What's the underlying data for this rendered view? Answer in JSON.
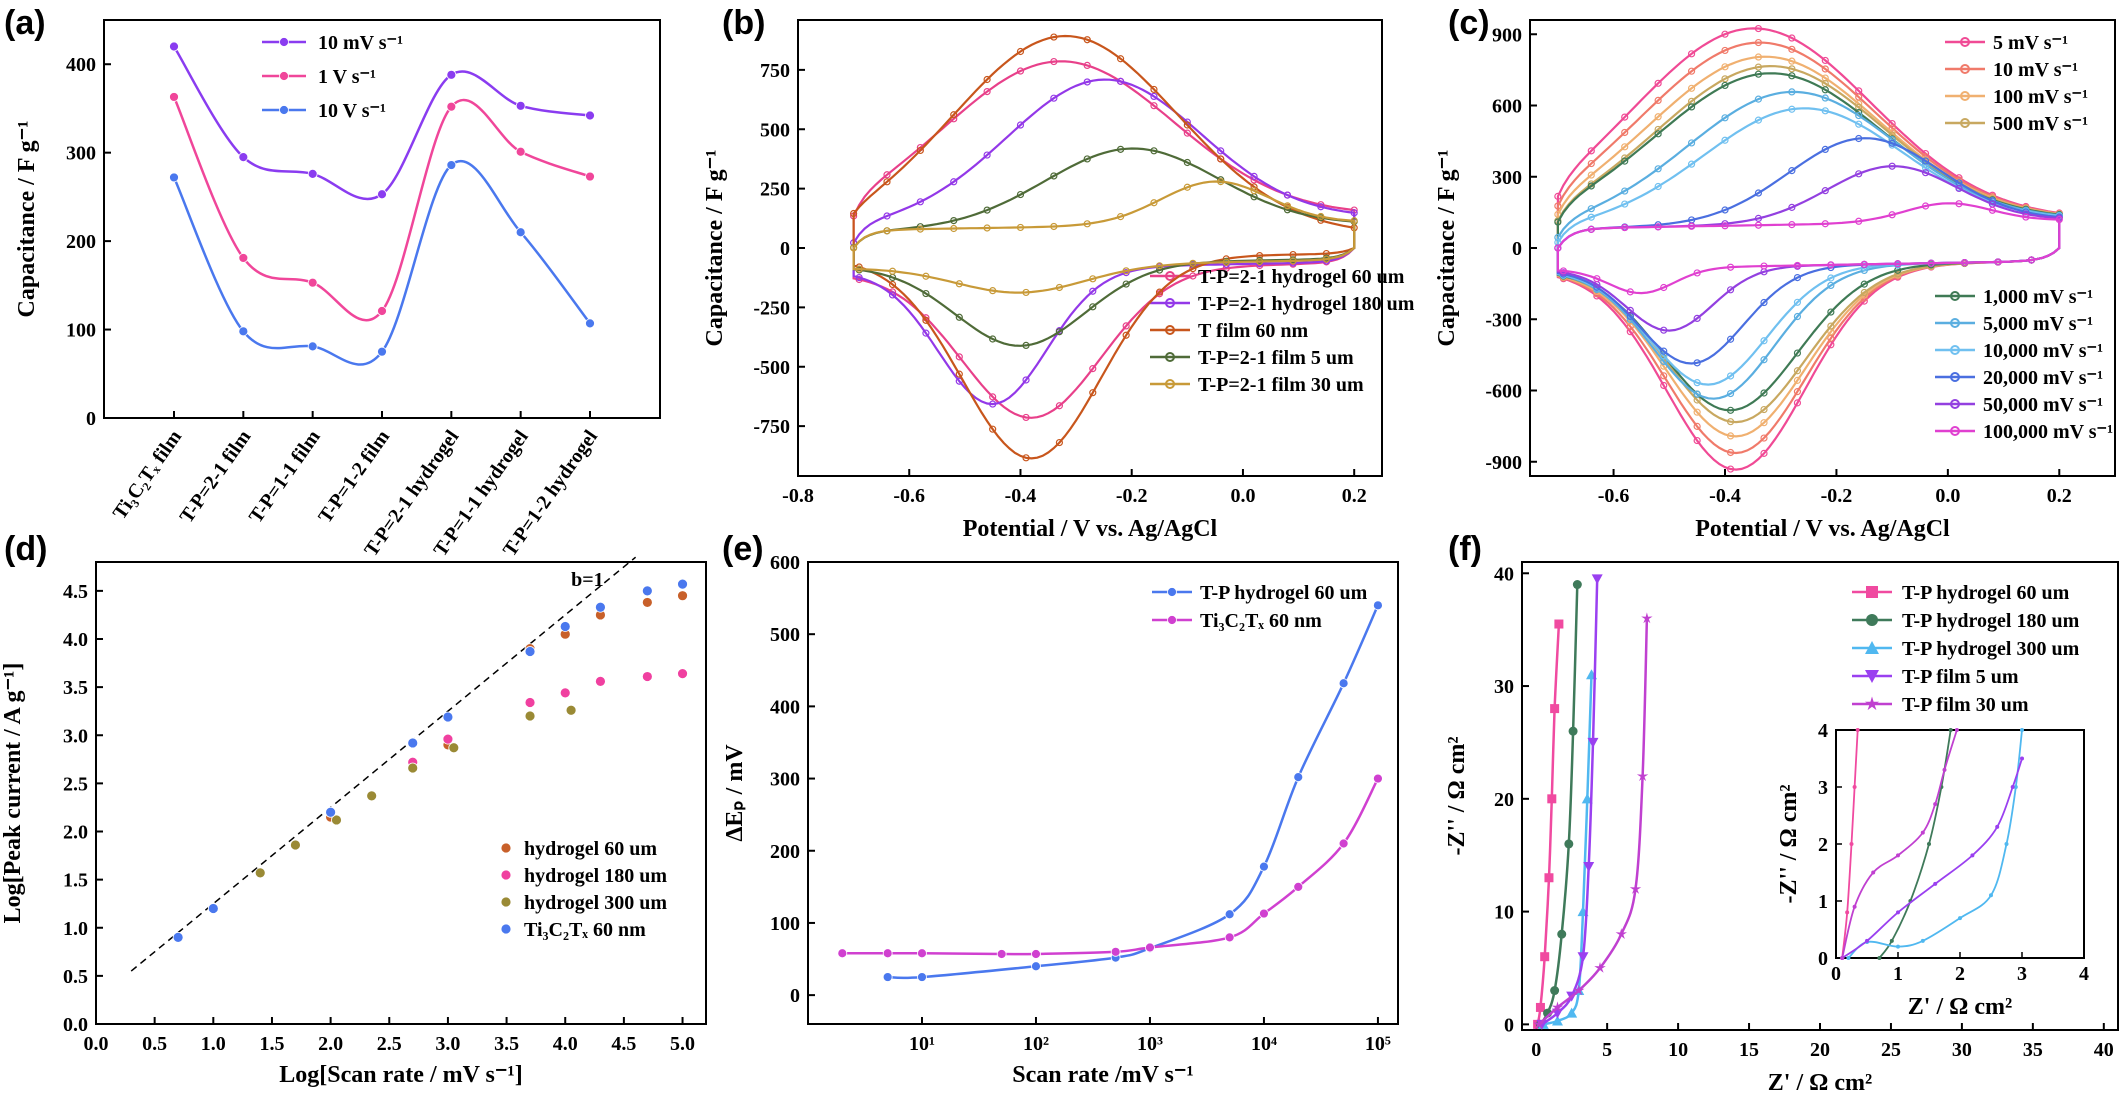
{
  "panel_labels": [
    "(a)",
    "(b)",
    "(c)",
    "(d)",
    "(e)",
    "(f)"
  ],
  "chart_data": [
    {
      "panel": "(a)",
      "type": "line",
      "xlabel": "",
      "ylabel": "Capacitance / F g⁻¹",
      "ylim": [
        0,
        450
      ],
      "yticks": [
        0,
        100,
        200,
        300,
        400
      ],
      "categories": [
        "Ti₃C₂Tₓ film",
        "T-P=2-1 film",
        "T-P=1-1 film",
        "T-P=1-2 film",
        "T-P=2-1 hydrogel",
        "T-P=1-1 hydrogel",
        "T-P=1-2 hydrogel"
      ],
      "series": [
        {
          "name": "10 mV s⁻¹",
          "color": "#8a3cf0",
          "values": [
            420,
            295,
            276,
            253,
            388,
            353,
            342
          ]
        },
        {
          "name": "1 V s⁻¹",
          "color": "#f0469a",
          "values": [
            363,
            181,
            153,
            121,
            352,
            301,
            273
          ]
        },
        {
          "name": "10 V s⁻¹",
          "color": "#4a78ee",
          "values": [
            272,
            98,
            81,
            75,
            286,
            210,
            107
          ]
        }
      ],
      "legend": "top-center"
    },
    {
      "panel": "(b)",
      "type": "line",
      "xlabel": "Potential / V vs. Ag/AgCl",
      "ylabel": "Capacitance / F g⁻¹",
      "xlim": [
        -0.8,
        0.25
      ],
      "ylim": [
        -960,
        960
      ],
      "xticks": [
        -0.8,
        -0.6,
        -0.4,
        -0.2,
        0.0,
        0.2
      ],
      "yticks": [
        -750,
        -500,
        -250,
        0,
        250,
        500,
        750
      ],
      "cv_window": [
        -0.7,
        0.2
      ],
      "series": [
        {
          "name": "T-P=2-1 hydrogel 60 um",
          "color": "#e8408a",
          "peak_ox": [
            -0.33,
            780
          ],
          "peak_red": [
            -0.38,
            -700
          ],
          "baseline": 150
        },
        {
          "name": "T-P=2-1 hydrogel 180 um",
          "color": "#9338e8",
          "peak_ox": [
            -0.25,
            700
          ],
          "peak_red": [
            -0.45,
            -640
          ],
          "baseline": 140
        },
        {
          "name": "T film 60 nm",
          "color": "#c8561c",
          "peak_ox": [
            -0.32,
            890
          ],
          "peak_red": [
            -0.38,
            -880
          ],
          "baseline": 60
        },
        {
          "name": "T-P=2-1 film 5 um",
          "color": "#4f6b38",
          "peak_ox": [
            -0.2,
            410
          ],
          "peak_red": [
            -0.4,
            -400
          ],
          "baseline": 110
        },
        {
          "name": "T-P=2-1 film 30 um",
          "color": "#c89a38",
          "peak_ox": [
            -0.05,
            265
          ],
          "peak_red": [
            -0.4,
            -175
          ],
          "baseline": 120
        }
      ],
      "legend": "bottom-right"
    },
    {
      "panel": "(c)",
      "type": "line",
      "xlabel": "Potential / V vs. Ag/AgCl",
      "ylabel": "Capacitance / F g⁻¹",
      "xlim": [
        -0.75,
        0.3
      ],
      "ylim": [
        -960,
        960
      ],
      "xticks": [
        -0.6,
        -0.4,
        -0.2,
        0.0,
        0.2
      ],
      "yticks": [
        -900,
        -600,
        -300,
        0,
        300,
        600,
        900
      ],
      "cv_window": [
        -0.7,
        0.2
      ],
      "series": [
        {
          "name": "5 mV s⁻¹",
          "color": "#f04a95",
          "peak_ox": [
            -0.35,
            920
          ],
          "peak_red": [
            -0.38,
            -920
          ]
        },
        {
          "name": "10 mV s⁻¹",
          "color": "#f07a6a",
          "peak_ox": [
            -0.34,
            860
          ],
          "peak_red": [
            -0.38,
            -850
          ]
        },
        {
          "name": "100 mV s⁻¹",
          "color": "#f0b070",
          "peak_ox": [
            -0.33,
            800
          ],
          "peak_red": [
            -0.38,
            -780
          ]
        },
        {
          "name": "500 mV s⁻¹",
          "color": "#c8a860",
          "peak_ox": [
            -0.32,
            760
          ],
          "peak_red": [
            -0.38,
            -720
          ]
        },
        {
          "name": "1,000 mV s⁻¹",
          "color": "#3f7a55",
          "peak_ox": [
            -0.32,
            730
          ],
          "peak_red": [
            -0.39,
            -670
          ]
        },
        {
          "name": "5,000 mV s⁻¹",
          "color": "#5aaee0",
          "peak_ox": [
            -0.28,
            650
          ],
          "peak_red": [
            -0.42,
            -620
          ]
        },
        {
          "name": "10,000 mV s⁻¹",
          "color": "#70c0f0",
          "peak_ox": [
            -0.26,
            580
          ],
          "peak_red": [
            -0.43,
            -560
          ]
        },
        {
          "name": "20,000 mV s⁻¹",
          "color": "#4a6fe0",
          "peak_ox": [
            -0.15,
            450
          ],
          "peak_red": [
            -0.46,
            -470
          ]
        },
        {
          "name": "50,000 mV s⁻¹",
          "color": "#9340e0",
          "peak_ox": [
            -0.1,
            330
          ],
          "peak_red": [
            -0.5,
            -330
          ]
        },
        {
          "name": "100,000 mV s⁻¹",
          "color": "#e040d0",
          "peak_ox": [
            0.0,
            170
          ],
          "peak_red": [
            -0.55,
            -170
          ]
        }
      ],
      "legend": "top-right and bottom-right"
    },
    {
      "panel": "(d)",
      "type": "scatter",
      "xlabel": "Log[Scan rate / mV s⁻¹]",
      "ylabel": "Log[Peak current / A g⁻¹]",
      "xlim": [
        0.0,
        5.2
      ],
      "ylim": [
        0.0,
        4.8
      ],
      "xticks": [
        0.0,
        0.5,
        1.0,
        1.5,
        2.0,
        2.5,
        3.0,
        3.5,
        4.0,
        4.5,
        5.0
      ],
      "yticks": [
        0.0,
        0.5,
        1.0,
        1.5,
        2.0,
        2.5,
        3.0,
        3.5,
        4.0,
        4.5
      ],
      "reference_line": {
        "label": "b=1",
        "x": [
          0.3,
          4.6
        ],
        "y": [
          0.55,
          4.85
        ]
      },
      "series": [
        {
          "name": "hydrogel 60 um",
          "color": "#c8602a",
          "x": [
            2.0,
            2.7,
            3.0,
            3.7,
            4.0,
            4.3,
            4.7,
            5.0
          ],
          "y": [
            2.15,
            2.7,
            2.9,
            3.9,
            4.05,
            4.25,
            4.38,
            4.45
          ]
        },
        {
          "name": "hydrogel 180 um",
          "color": "#f040a0",
          "x": [
            2.7,
            3.0,
            3.7,
            4.0,
            4.3,
            4.7,
            5.0
          ],
          "y": [
            2.72,
            2.96,
            3.34,
            3.44,
            3.56,
            3.61,
            3.64
          ]
        },
        {
          "name": "hydrogel 300 um",
          "color": "#9a8a35",
          "x": [
            1.4,
            1.7,
            2.05,
            2.35,
            2.7,
            3.05,
            3.7,
            4.05
          ],
          "y": [
            1.57,
            1.86,
            2.12,
            2.37,
            2.66,
            2.87,
            3.2,
            3.26
          ]
        },
        {
          "name": "Ti₃C₂Tₓ 60 nm",
          "color": "#4a78ee",
          "x": [
            0.7,
            1.0,
            2.0,
            2.7,
            3.0,
            3.7,
            4.0,
            4.3,
            4.7,
            5.0
          ],
          "y": [
            0.9,
            1.2,
            2.2,
            2.92,
            3.19,
            3.87,
            4.13,
            4.33,
            4.5,
            4.57
          ]
        }
      ],
      "legend": "bottom-right"
    },
    {
      "panel": "(e)",
      "type": "line",
      "xlabel": "Scan rate /mV s⁻¹",
      "ylabel": "ΔEₚ / mV",
      "xscale": "log",
      "xlim": [
        1,
        150000
      ],
      "ylim": [
        -40,
        600
      ],
      "xticks": [
        10,
        100,
        1000,
        10000,
        100000
      ],
      "xtick_labels": [
        "10¹",
        "10²",
        "10³",
        "10⁴",
        "10⁵"
      ],
      "yticks": [
        0,
        100,
        200,
        300,
        400,
        500,
        600
      ],
      "series": [
        {
          "name": "T-P hydrogel 60 um",
          "color": "#4a78ee",
          "x": [
            5,
            10,
            100,
            500,
            1000,
            5000,
            10000,
            20000,
            50000,
            100000
          ],
          "y": [
            25,
            25,
            40,
            52,
            65,
            112,
            178,
            302,
            432,
            540
          ]
        },
        {
          "name": "Ti₃C₂Tₓ 60 nm",
          "color": "#d040d0",
          "x": [
            2,
            5,
            10,
            50,
            100,
            500,
            1000,
            5000,
            10000,
            20000,
            50000,
            100000
          ],
          "y": [
            58,
            58,
            58,
            57,
            57,
            60,
            66,
            80,
            113,
            150,
            210,
            300
          ]
        }
      ],
      "legend": "top-right"
    },
    {
      "panel": "(f)",
      "type": "line",
      "xlabel": "Z' / Ω cm²",
      "ylabel": "-Z'' / Ω cm²",
      "xlim": [
        -1,
        41
      ],
      "ylim": [
        -0.5,
        41
      ],
      "xticks": [
        0,
        5,
        10,
        15,
        20,
        25,
        30,
        35,
        40
      ],
      "yticks": [
        0,
        10,
        20,
        30,
        40
      ],
      "series": [
        {
          "name": "T-P hydrogel 60 um",
          "color": "#f04aa0",
          "marker": "square",
          "x": [
            0.1,
            0.3,
            0.6,
            0.9,
            1.1,
            1.3,
            1.6
          ],
          "y": [
            0.0,
            1.5,
            6.0,
            13.0,
            20.0,
            28.0,
            35.5
          ]
        },
        {
          "name": "T-P hydrogel 180 um",
          "color": "#3f7a5a",
          "marker": "circle",
          "x": [
            0.3,
            0.8,
            1.3,
            1.8,
            2.3,
            2.6,
            2.9
          ],
          "y": [
            0.0,
            1.0,
            3.0,
            8.0,
            16.0,
            26.0,
            39.0
          ]
        },
        {
          "name": "T-P hydrogel 300 um",
          "color": "#50b8f0",
          "marker": "triangle-up",
          "x": [
            0.5,
            1.5,
            2.5,
            3.0,
            3.3,
            3.6,
            3.9
          ],
          "y": [
            0.0,
            0.3,
            1.0,
            3.0,
            10.0,
            20.0,
            31.0
          ]
        },
        {
          "name": "T-P film 5 um",
          "color": "#9a40f0",
          "marker": "triangle-down",
          "x": [
            0.4,
            1.5,
            2.5,
            3.3,
            3.7,
            4.0,
            4.3
          ],
          "y": [
            0.0,
            1.0,
            2.5,
            6.0,
            14.0,
            25.0,
            39.5
          ]
        },
        {
          "name": "T-P film 30 um",
          "color": "#c040d0",
          "marker": "star",
          "x": [
            0.2,
            1.5,
            3.0,
            4.5,
            6.0,
            7.0,
            7.5,
            7.8
          ],
          "y": [
            0.0,
            1.5,
            3.0,
            5.0,
            8.0,
            12.0,
            22.0,
            36.0
          ]
        }
      ],
      "legend": "top-right",
      "inset": {
        "xlabel": "Z' / Ω cm²",
        "ylabel": "-Z'' / Ω cm²",
        "xlim": [
          0,
          4
        ],
        "ylim": [
          0,
          4
        ],
        "xticks": [
          0,
          1,
          2,
          3,
          4
        ],
        "yticks": [
          0,
          1,
          2,
          3,
          4
        ],
        "series": [
          {
            "color": "#f04aa0",
            "x": [
              0.1,
              0.18,
              0.25,
              0.3,
              0.35
            ],
            "y": [
              0.0,
              0.8,
              2.0,
              3.0,
              4.0
            ]
          },
          {
            "color": "#3f7a5a",
            "x": [
              0.7,
              0.9,
              1.2,
              1.5,
              1.7,
              1.85
            ],
            "y": [
              0.0,
              0.3,
              1.0,
              2.0,
              3.0,
              4.0
            ]
          },
          {
            "color": "#50b8f0",
            "x": [
              0.2,
              0.5,
              1.0,
              1.4,
              2.0,
              2.5,
              2.75,
              2.9,
              3.0
            ],
            "y": [
              0.0,
              0.28,
              0.2,
              0.3,
              0.7,
              1.1,
              2.0,
              3.0,
              4.0
            ]
          },
          {
            "color": "#9a40f0",
            "x": [
              0.1,
              0.5,
              1.0,
              1.6,
              2.2,
              2.6,
              2.85,
              3.0
            ],
            "y": [
              0.0,
              0.3,
              0.8,
              1.3,
              1.8,
              2.3,
              3.0,
              3.5
            ]
          },
          {
            "color": "#c040d0",
            "x": [
              0.1,
              0.3,
              0.6,
              1.0,
              1.4,
              1.6,
              1.75,
              1.95
            ],
            "y": [
              0.0,
              0.9,
              1.5,
              1.8,
              2.2,
              2.7,
              3.3,
              4.0
            ]
          }
        ]
      }
    }
  ]
}
